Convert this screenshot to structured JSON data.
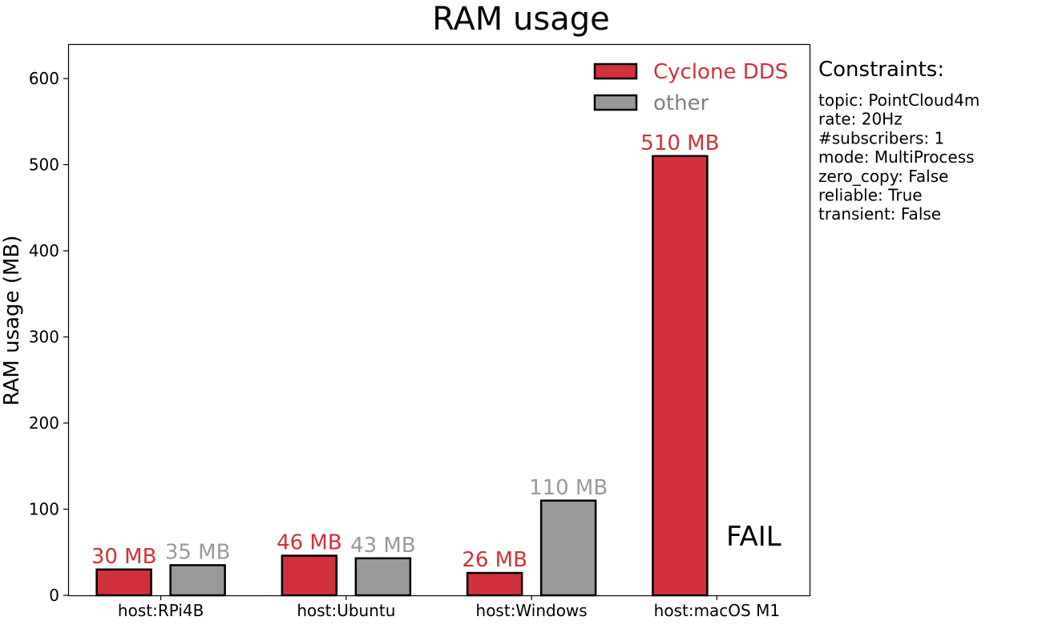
{
  "chart_data": {
    "type": "bar",
    "title": "RAM usage",
    "xlabel": "",
    "ylabel": "RAM usage (MB)",
    "ylim": [
      0,
      640
    ],
    "yticks": [
      0,
      100,
      200,
      300,
      400,
      500,
      600
    ],
    "categories": [
      "host:RPi4B",
      "host:Ubuntu",
      "host:Windows",
      "host:macOS M1"
    ],
    "series": [
      {
        "name": "Cyclone DDS",
        "color": "#d1313b",
        "values": [
          30,
          46,
          26,
          510
        ],
        "labels": [
          "30 MB",
          "46 MB",
          "26 MB",
          "510 MB"
        ]
      },
      {
        "name": "other",
        "color": "#999999",
        "values": [
          35,
          43,
          110,
          null
        ],
        "labels": [
          "35 MB",
          "43 MB",
          "110 MB",
          null
        ]
      }
    ],
    "annotations": [
      {
        "category": "host:macOS M1",
        "series": "other",
        "text": "FAIL"
      }
    ],
    "legend": {
      "placement": "top-right"
    },
    "grid": false
  },
  "constraints": {
    "heading": "Constraints:",
    "lines": [
      "topic: PointCloud4m",
      "rate: 20Hz",
      "#subscribers: 1",
      "mode: MultiProcess",
      "zero_copy: False",
      "reliable: True",
      "transient: False"
    ]
  }
}
